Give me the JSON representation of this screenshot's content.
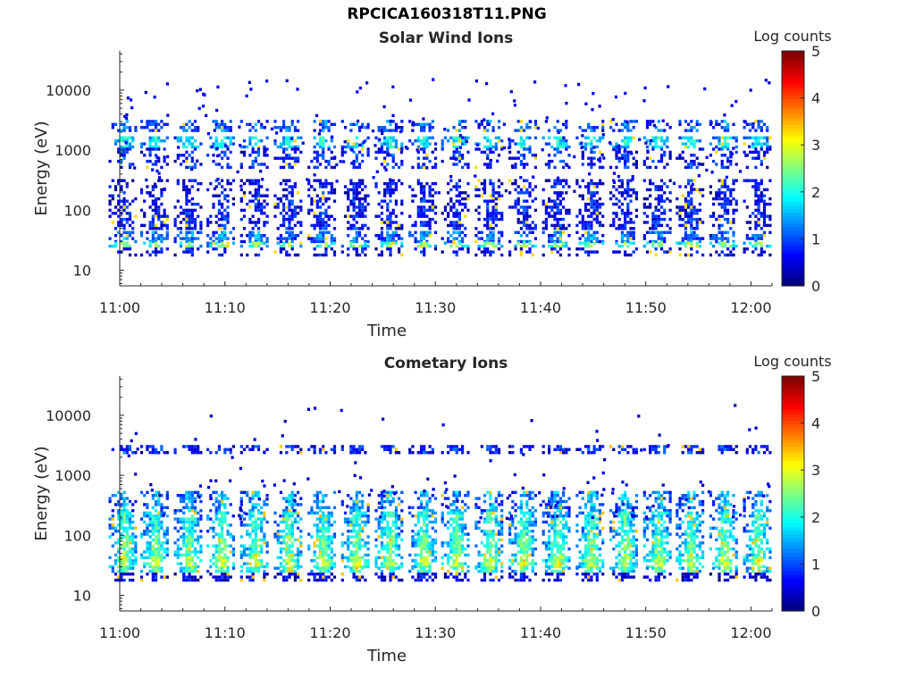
{
  "figure_title": "RPCICA160318T11.PNG",
  "colors": {
    "axis": "#262626",
    "background": "#ffffff",
    "colormap": "jet"
  },
  "chart_data": [
    {
      "type": "heatmap",
      "title": "Solar Wind Ions",
      "xlabel": "Time",
      "ylabel": "Energy (eV)",
      "x_ticks": [
        "11:00",
        "11:10",
        "11:20",
        "11:30",
        "11:40",
        "11:50",
        "12:00"
      ],
      "y_ticks": [
        "10",
        "100",
        "1000",
        "10000"
      ],
      "y_scale": "log",
      "ylim": [
        5.5,
        45000
      ],
      "xlim": [
        "11:00",
        "12:02"
      ],
      "colorbar": {
        "label": "Log counts",
        "ticks": [
          "0",
          "1",
          "2",
          "3",
          "4",
          "5"
        ],
        "range": [
          0,
          5
        ]
      },
      "scan_times_min": [
        0.3,
        3.3,
        6.5,
        9.6,
        12.8,
        16.0,
        19.2,
        22.4,
        25.6,
        28.8,
        31.9,
        35.1,
        38.3,
        41.5,
        44.7,
        47.9,
        51.1,
        54.2,
        57.4,
        60.6
      ],
      "bands": [
        {
          "e_min": 2200,
          "e_max": 3200,
          "level": 1.1,
          "fill": 0.6
        },
        {
          "e_min": 1100,
          "e_max": 1700,
          "level": 1.8,
          "fill": 0.8
        },
        {
          "e_min": 500,
          "e_max": 1100,
          "level": 0.8,
          "fill": 0.5
        },
        {
          "e_min": 150,
          "e_max": 330,
          "level": 0.6,
          "fill": 0.55
        },
        {
          "e_min": 50,
          "e_max": 150,
          "level": 0.7,
          "fill": 0.7
        },
        {
          "e_min": 30,
          "e_max": 45,
          "level": 1.2,
          "fill": 0.8
        },
        {
          "e_min": 24,
          "e_max": 30,
          "level": 2.4,
          "fill": 0.7
        },
        {
          "e_min": 18,
          "e_max": 24,
          "level": 0.6,
          "fill": 0.5
        }
      ],
      "sparse_level": 0.3,
      "peak_level": 3.3
    },
    {
      "type": "heatmap",
      "title": "Cometary Ions",
      "xlabel": "Time",
      "ylabel": "Energy (eV)",
      "x_ticks": [
        "11:00",
        "11:10",
        "11:20",
        "11:30",
        "11:40",
        "11:50",
        "12:00"
      ],
      "y_ticks": [
        "10",
        "100",
        "1000",
        "10000"
      ],
      "y_scale": "log",
      "ylim": [
        5.5,
        45000
      ],
      "xlim": [
        "11:00",
        "12:02"
      ],
      "colorbar": {
        "label": "Log counts",
        "ticks": [
          "0",
          "1",
          "2",
          "3",
          "4",
          "5"
        ],
        "range": [
          0,
          5
        ]
      },
      "scan_times_min": [
        0.3,
        3.3,
        6.5,
        9.6,
        12.8,
        16.0,
        19.2,
        22.4,
        25.6,
        28.8,
        31.9,
        35.1,
        38.3,
        41.5,
        44.7,
        47.9,
        51.1,
        54.2,
        57.4,
        60.6
      ],
      "bands": [
        {
          "e_min": 2500,
          "e_max": 3200,
          "level": 0.8,
          "fill": 0.7
        },
        {
          "e_min": 250,
          "e_max": 550,
          "level": 1.4,
          "fill": 0.6
        },
        {
          "e_min": 100,
          "e_max": 250,
          "level": 1.9,
          "fill": 0.85
        },
        {
          "e_min": 45,
          "e_max": 100,
          "level": 2.2,
          "fill": 0.9
        },
        {
          "e_min": 30,
          "e_max": 45,
          "level": 2.6,
          "fill": 0.95
        },
        {
          "e_min": 24,
          "e_max": 30,
          "level": 2.2,
          "fill": 0.9
        },
        {
          "e_min": 18,
          "e_max": 24,
          "level": 0.5,
          "fill": 0.7
        }
      ],
      "sparse_level": 0.2,
      "peak_level": 3.4
    }
  ]
}
